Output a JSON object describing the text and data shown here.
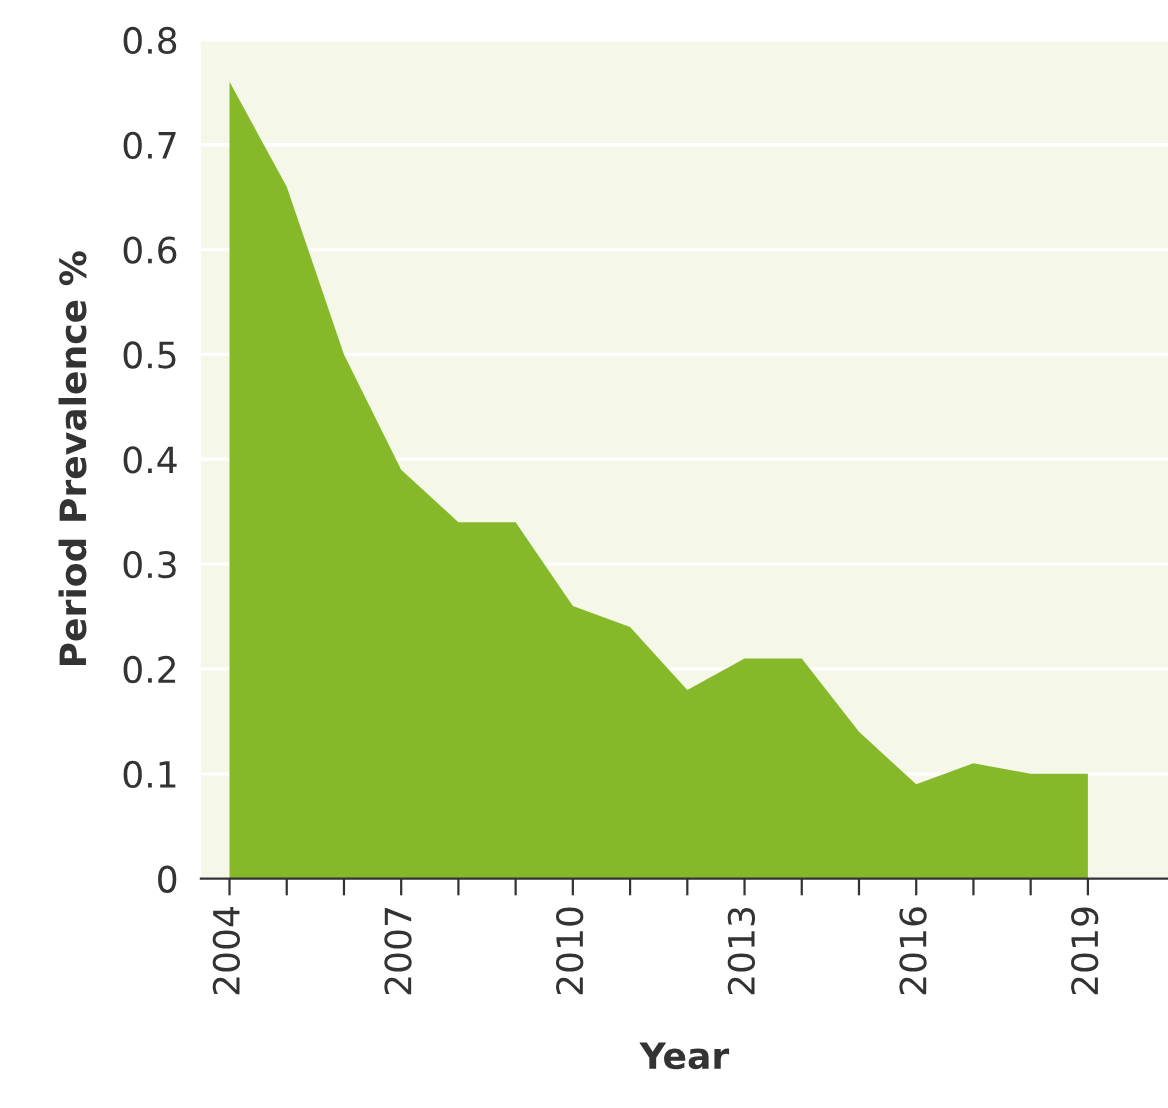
{
  "chart_data": {
    "type": "area",
    "xlabel": "Year",
    "ylabel": "Period Prevalence %",
    "x": [
      2004,
      2005,
      2006,
      2007,
      2008,
      2009,
      2010,
      2011,
      2012,
      2013,
      2014,
      2015,
      2016,
      2017,
      2018,
      2019
    ],
    "series": [
      {
        "color": "#86b92a",
        "values": [
          0.76,
          0.66,
          0.5,
          0.39,
          0.34,
          0.34,
          0.26,
          0.24,
          0.18,
          0.21,
          0.21,
          0.14,
          0.09,
          0.11,
          0.1,
          0.1
        ]
      }
    ],
    "xlim": [
      2003.5,
      2020.4
    ],
    "ylim": [
      0,
      0.8
    ],
    "xticks": [
      2004,
      {
        "value": 2005,
        "label": null
      },
      {
        "value": 2006,
        "label": null
      },
      2007,
      {
        "value": 2008,
        "label": null
      },
      {
        "value": 2009,
        "label": null
      },
      2010,
      {
        "value": 2011,
        "label": null
      },
      {
        "value": 2012,
        "label": null
      },
      2013,
      {
        "value": 2014,
        "label": null
      },
      {
        "value": 2015,
        "label": null
      },
      2016,
      {
        "value": 2017,
        "label": null
      },
      {
        "value": 2018,
        "label": null
      },
      2019
    ],
    "yticks": [
      0,
      0.1,
      0.2,
      0.3,
      0.4,
      0.5,
      0.6,
      0.7,
      0.8
    ],
    "grid": "y",
    "legend": false
  }
}
